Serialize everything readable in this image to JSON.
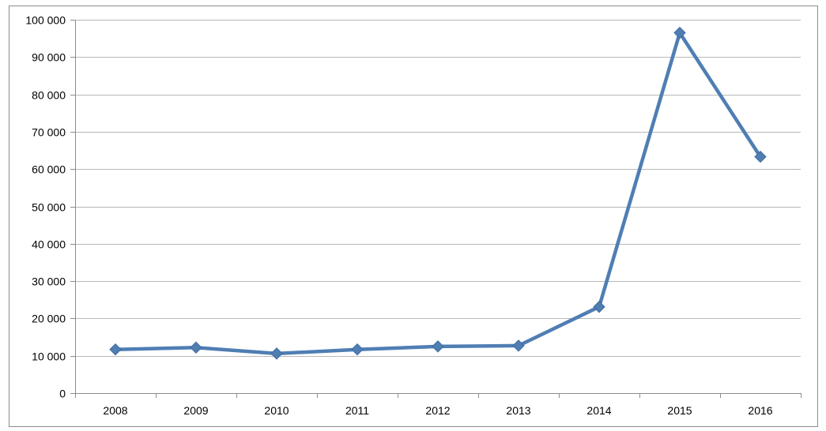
{
  "chart_data": {
    "type": "line",
    "categories": [
      "2008",
      "2009",
      "2010",
      "2011",
      "2012",
      "2013",
      "2014",
      "2015",
      "2016"
    ],
    "series": [
      {
        "values": [
          11700,
          12200,
          10600,
          11700,
          12500,
          12700,
          23100,
          96500,
          63300
        ]
      }
    ],
    "y_ticks": [
      "0",
      "10 000",
      "20 000",
      "30 000",
      "40 000",
      "50 000",
      "60 000",
      "70 000",
      "80 000",
      "90 000",
      "100 000"
    ],
    "ylim": [
      0,
      100000
    ],
    "grid": true,
    "legend": "none",
    "colors": {
      "line": "#4f7eb3",
      "marker": "#4f7eb3",
      "grid": "#b8b8b8",
      "axis": "#8c8c8c",
      "frame": "#8c8c8c"
    }
  }
}
